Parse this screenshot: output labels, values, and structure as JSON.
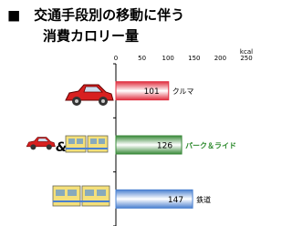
{
  "title_lines": [
    "■　交通手段別の移動に伴う",
    "消費カロリー量"
  ],
  "connector": "&",
  "chart_data": {
    "type": "barh",
    "x_unit": "kcal",
    "categories": [
      "クルマ",
      "パーク＆ライド",
      "鉄道"
    ],
    "values": [
      101,
      126,
      147
    ],
    "colors": [
      "#e03040",
      "#3a8a3a",
      "#4a80d0"
    ],
    "xlim": [
      0,
      250
    ],
    "xticks": [
      0,
      50,
      100,
      150,
      200,
      250
    ]
  }
}
